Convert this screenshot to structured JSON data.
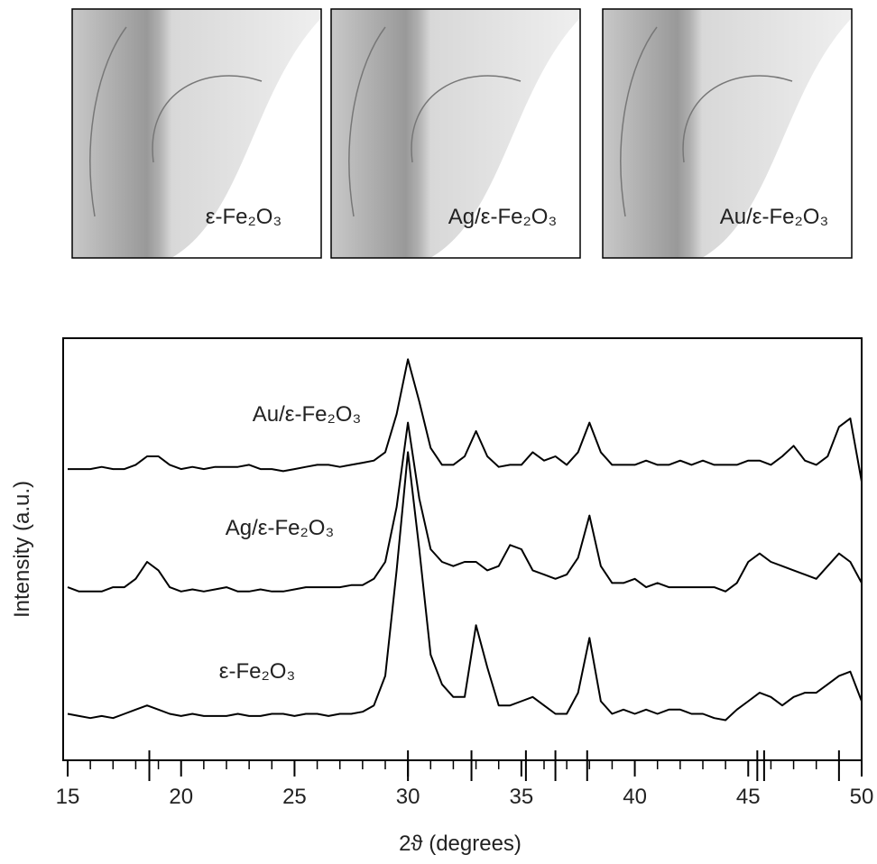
{
  "images": [
    {
      "label": "ε-Fe₂O₃"
    },
    {
      "label": "Ag/ε-Fe₂O₃"
    },
    {
      "label": "Au/ε-Fe₂O₃"
    }
  ],
  "chart_data": {
    "type": "line",
    "x_label": "2ϑ (degrees)",
    "y_label": "Intensity (a.u.)",
    "xlim": [
      15,
      50
    ],
    "xticks": [
      15,
      20,
      25,
      30,
      35,
      40,
      45,
      50
    ],
    "xminor_ticks": [
      16,
      17,
      18,
      19,
      21,
      22,
      23,
      24,
      26,
      27,
      28,
      29,
      31,
      32,
      33,
      34,
      36,
      37,
      38,
      39,
      41,
      42,
      43,
      44,
      46,
      47,
      48,
      49
    ],
    "ylim": [
      0,
      100
    ],
    "reference_peaks": [
      18.6,
      30.0,
      32.8,
      35.2,
      36.5,
      37.9,
      45.4,
      45.7,
      49.0
    ],
    "x": [
      15,
      15.5,
      16,
      16.5,
      17,
      17.5,
      18,
      18.5,
      19,
      19.5,
      20,
      20.5,
      21,
      21.5,
      22,
      22.5,
      23,
      23.5,
      24,
      24.5,
      25,
      25.5,
      26,
      26.5,
      27,
      27.5,
      28,
      28.5,
      29,
      29.5,
      30,
      30.5,
      31,
      31.5,
      32,
      32.5,
      33,
      33.5,
      34,
      34.5,
      35,
      35.5,
      36,
      36.5,
      37,
      37.5,
      38,
      38.5,
      39,
      39.5,
      40,
      40.5,
      41,
      41.5,
      42,
      42.5,
      43,
      43.5,
      44,
      44.5,
      45,
      45.5,
      46,
      46.5,
      47,
      47.5,
      48,
      48.5,
      49,
      49.5,
      50
    ],
    "series": [
      {
        "name": "Au/ε-Fe₂O₃",
        "color": "#000000",
        "values": [
          69,
          69,
          69,
          69.5,
          69,
          69,
          70,
          72,
          72,
          70,
          69,
          69.5,
          69,
          69.5,
          69.5,
          69.5,
          70,
          69,
          69,
          68.5,
          69,
          69.5,
          70,
          70,
          69.5,
          70,
          70.5,
          71,
          73,
          82,
          95,
          85,
          74,
          70,
          70,
          72,
          78,
          72,
          69.5,
          70,
          70,
          73,
          71,
          72,
          70,
          73,
          80,
          73,
          70,
          70,
          70,
          71,
          70,
          70,
          71,
          70,
          71,
          70,
          70,
          70,
          71,
          71,
          70,
          72,
          74.5,
          71,
          70,
          72,
          79,
          81,
          66
        ]
      },
      {
        "name": "Ag/ε-Fe₂O₃",
        "color": "#000000",
        "values": [
          41,
          40,
          40,
          40,
          41,
          41,
          43,
          47,
          45,
          41,
          40,
          40.5,
          40,
          40.5,
          41,
          40,
          40,
          40.5,
          40,
          40,
          40.5,
          41,
          41,
          41,
          41,
          41.5,
          41.5,
          43,
          47,
          60,
          80,
          62,
          50,
          47,
          46,
          47,
          47,
          45,
          46,
          51,
          50,
          45,
          44,
          43,
          44,
          48,
          58,
          46,
          42,
          42,
          43,
          41,
          42,
          41,
          41,
          41,
          41,
          41,
          40,
          42,
          47,
          49,
          47,
          46,
          45,
          44,
          43,
          46,
          49,
          47,
          42
        ]
      },
      {
        "name": "ε-Fe₂O₃",
        "color": "#000000",
        "values": [
          11,
          10.5,
          10,
          10.5,
          10,
          11,
          12,
          13,
          12,
          11,
          10.5,
          11,
          10.5,
          10.5,
          10.5,
          11,
          10.5,
          10.5,
          11,
          11,
          10.5,
          11,
          11,
          10.5,
          11,
          11,
          11.5,
          13,
          20,
          45,
          73,
          50,
          25,
          18,
          15,
          15,
          32,
          22,
          13,
          13,
          14,
          15,
          13,
          11,
          11,
          16,
          29,
          14,
          11,
          12,
          11,
          12,
          11,
          12,
          12,
          11,
          11,
          10,
          9.5,
          12,
          14,
          16,
          15,
          13,
          15,
          16,
          16,
          18,
          20,
          21,
          14
        ]
      }
    ]
  }
}
